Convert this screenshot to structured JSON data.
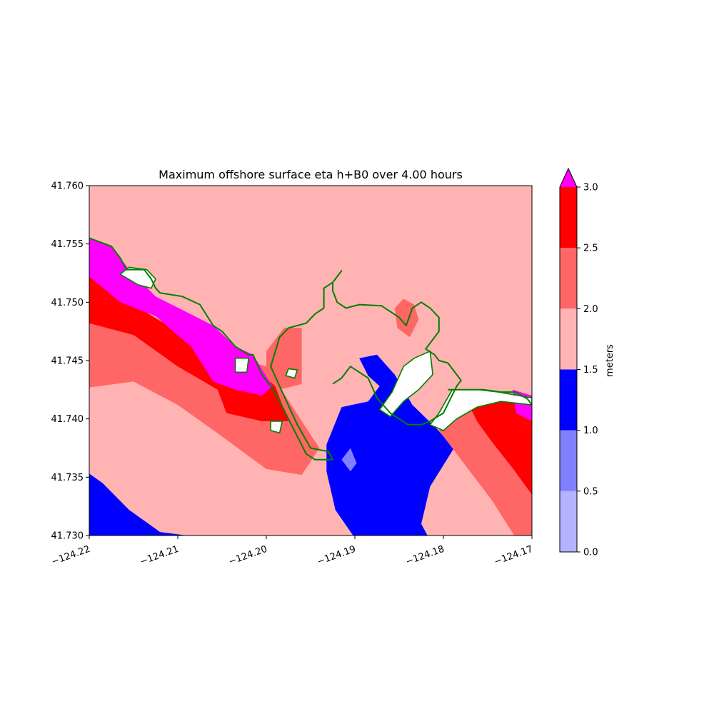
{
  "chart_data": {
    "type": "heatmap",
    "title": "Maximum offshore surface eta h+B0 over 4.00 hours",
    "xlabel": "",
    "ylabel": "",
    "xlim": [
      -124.22,
      -124.17
    ],
    "ylim": [
      41.73,
      41.76
    ],
    "x_ticks": [
      "−124.22",
      "−124.21",
      "−124.20",
      "−124.19",
      "−124.18",
      "−124.17"
    ],
    "x_tick_values": [
      -124.22,
      -124.21,
      -124.2,
      -124.19,
      -124.18,
      -124.17
    ],
    "y_ticks": [
      "41.730",
      "41.735",
      "41.740",
      "41.745",
      "41.750",
      "41.755",
      "41.760"
    ],
    "y_tick_values": [
      41.73,
      41.735,
      41.74,
      41.745,
      41.75,
      41.755,
      41.76
    ],
    "grid": false,
    "land_color": "#ffffff",
    "shoreline_color": "#008000",
    "colorbar": {
      "label": "meters",
      "ticks": [
        "0.0",
        "0.5",
        "1.0",
        "1.5",
        "2.0",
        "2.5",
        "3.0"
      ],
      "tick_values": [
        0,
        0.5,
        1.0,
        1.5,
        2.0,
        2.5,
        3.0
      ],
      "extend": "max",
      "over_color": "#ff00ff",
      "bins": [
        {
          "range": [
            0.0,
            0.5
          ],
          "color": "#b3b3ff"
        },
        {
          "range": [
            0.5,
            1.0
          ],
          "color": "#8080ff"
        },
        {
          "range": [
            1.0,
            1.5
          ],
          "color": "#0000ff"
        },
        {
          "range": [
            1.5,
            2.0
          ],
          "color": "#ffb3b3"
        },
        {
          "range": [
            2.0,
            2.5
          ],
          "color": "#ff6666"
        },
        {
          "range": [
            2.5,
            3.0
          ],
          "color": "#ff0000"
        }
      ]
    },
    "regions": [
      {
        "level": "1.5-2.0",
        "color": "#ffb3b3",
        "polygon": [
          [
            -124.22,
            41.73
          ],
          [
            -124.17,
            41.73
          ],
          [
            -124.17,
            41.76
          ],
          [
            -124.22,
            41.76
          ]
        ]
      },
      {
        "level": "2.0-2.5",
        "color": "#ff6666",
        "polygon": [
          [
            -124.22,
            41.7427
          ],
          [
            -124.215,
            41.7432
          ],
          [
            -124.21,
            41.7412
          ],
          [
            -124.205,
            41.7385
          ],
          [
            -124.2,
            41.7357
          ],
          [
            -124.196,
            41.7352
          ],
          [
            -124.194,
            41.7375
          ],
          [
            -124.196,
            41.7398
          ],
          [
            -124.2,
            41.7445
          ],
          [
            -124.203,
            41.7452
          ],
          [
            -124.21,
            41.7475
          ],
          [
            -124.215,
            41.7498
          ],
          [
            -124.22,
            41.751
          ]
        ]
      },
      {
        "level": "2.5-3.0",
        "color": "#ff0000",
        "polygon": [
          [
            -124.22,
            41.7482
          ],
          [
            -124.215,
            41.7472
          ],
          [
            -124.21,
            41.7445
          ],
          [
            -124.2055,
            41.7425
          ],
          [
            -124.2045,
            41.7405
          ],
          [
            -124.2005,
            41.7398
          ],
          [
            -124.1975,
            41.7398
          ],
          [
            -124.199,
            41.7428
          ],
          [
            -124.2025,
            41.7452
          ],
          [
            -124.21,
            41.7475
          ],
          [
            -124.215,
            41.7498
          ],
          [
            -124.22,
            41.7522
          ]
        ]
      },
      {
        "level": ">3.0",
        "color": "#ff00ff",
        "polygon": [
          [
            -124.22,
            41.7522
          ],
          [
            -124.2165,
            41.75
          ],
          [
            -124.2125,
            41.7488
          ],
          [
            -124.2085,
            41.7462
          ],
          [
            -124.206,
            41.7432
          ],
          [
            -124.2035,
            41.7425
          ],
          [
            -124.2005,
            41.742
          ],
          [
            -124.1993,
            41.7428
          ],
          [
            -124.2015,
            41.7455
          ],
          [
            -124.2035,
            41.7462
          ],
          [
            -124.206,
            41.748
          ],
          [
            -124.2125,
            41.7505
          ],
          [
            -124.2155,
            41.7528
          ],
          [
            -124.2175,
            41.7548
          ],
          [
            -124.22,
            41.7555
          ]
        ]
      },
      {
        "level": "1.0-1.5",
        "color": "#0000ff",
        "polygon": [
          [
            -124.22,
            41.7353
          ],
          [
            -124.2185,
            41.7345
          ],
          [
            -124.2155,
            41.7322
          ],
          [
            -124.212,
            41.7303
          ],
          [
            -124.209,
            41.73
          ],
          [
            -124.22,
            41.73
          ]
        ]
      },
      {
        "level": "1.0-1.5",
        "color": "#0000ff",
        "polygon": [
          [
            -124.1902,
            41.73
          ],
          [
            -124.1922,
            41.7322
          ],
          [
            -124.1932,
            41.7355
          ],
          [
            -124.1932,
            41.7378
          ],
          [
            -124.1915,
            41.741
          ],
          [
            -124.1885,
            41.7415
          ],
          [
            -124.1872,
            41.7428
          ],
          [
            -124.1885,
            41.7437
          ],
          [
            -124.1895,
            41.7452
          ],
          [
            -124.1875,
            41.7455
          ],
          [
            -124.1855,
            41.7438
          ],
          [
            -124.1835,
            41.7412
          ],
          [
            -124.1808,
            41.7392
          ],
          [
            -124.1788,
            41.7375
          ],
          [
            -124.1815,
            41.7342
          ],
          [
            -124.1825,
            41.731
          ],
          [
            -124.1818,
            41.73
          ]
        ]
      },
      {
        "level": "0.5-1.0",
        "color": "#8080ff",
        "polygon": [
          [
            -124.1915,
            41.7365
          ],
          [
            -124.1905,
            41.7375
          ],
          [
            -124.1898,
            41.7362
          ],
          [
            -124.1905,
            41.7355
          ]
        ]
      },
      {
        "level": "2.0-2.5",
        "color": "#ff6666",
        "polygon": [
          [
            -124.17,
            41.73
          ],
          [
            -124.172,
            41.73
          ],
          [
            -124.1745,
            41.733
          ],
          [
            -124.1775,
            41.736
          ],
          [
            -124.1805,
            41.739
          ],
          [
            -124.1795,
            41.7405
          ],
          [
            -124.1778,
            41.7425
          ],
          [
            -124.1735,
            41.7423
          ],
          [
            -124.17,
            41.7418
          ]
        ]
      },
      {
        "level": "2.5-3.0",
        "color": "#ff0000",
        "polygon": [
          [
            -124.17,
            41.7335
          ],
          [
            -124.1722,
            41.7358
          ],
          [
            -124.1745,
            41.738
          ],
          [
            -124.1762,
            41.7398
          ],
          [
            -124.1775,
            41.7418
          ],
          [
            -124.179,
            41.7425
          ],
          [
            -124.1735,
            41.7423
          ],
          [
            -124.17,
            41.7418
          ]
        ]
      },
      {
        "level": ">3.0",
        "color": "#ff00ff",
        "polygon": [
          [
            -124.17,
            41.7398
          ],
          [
            -124.1718,
            41.7405
          ],
          [
            -124.1722,
            41.7425
          ],
          [
            -124.17,
            41.742
          ]
        ]
      },
      {
        "level": "2.0-2.5",
        "color": "#ff6666",
        "polygon": [
          [
            -124.2,
            41.7458
          ],
          [
            -124.198,
            41.7478
          ],
          [
            -124.196,
            41.7478
          ],
          [
            -124.196,
            41.743
          ],
          [
            -124.1985,
            41.7425
          ],
          [
            -124.2,
            41.7445
          ]
        ]
      },
      {
        "level": "2.0-2.5",
        "color": "#ff6666",
        "polygon": [
          [
            -124.1845,
            41.7503
          ],
          [
            -124.1833,
            41.7498
          ],
          [
            -124.1828,
            41.7485
          ],
          [
            -124.1838,
            41.747
          ],
          [
            -124.1852,
            41.7478
          ],
          [
            -124.1855,
            41.7495
          ]
        ]
      }
    ],
    "land_areas": [
      [
        [
          -124.1872,
          41.7408
        ],
        [
          -124.1858,
          41.7423
        ],
        [
          -124.1845,
          41.7445
        ],
        [
          -124.1833,
          41.7452
        ],
        [
          -124.1815,
          41.7458
        ],
        [
          -124.1812,
          41.7438
        ],
        [
          -124.1828,
          41.7425
        ],
        [
          -124.1845,
          41.7415
        ],
        [
          -124.186,
          41.7402
        ]
      ],
      [
        [
          -124.17,
          41.7418
        ],
        [
          -124.1738,
          41.7423
        ],
        [
          -124.176,
          41.7425
        ],
        [
          -124.1775,
          41.7425
        ],
        [
          -124.179,
          41.7425
        ],
        [
          -124.1805,
          41.7405
        ],
        [
          -124.1815,
          41.7395
        ],
        [
          -124.18,
          41.739
        ],
        [
          -124.1785,
          41.74
        ],
        [
          -124.1762,
          41.741
        ],
        [
          -124.1735,
          41.7415
        ],
        [
          -124.17,
          41.7412
        ]
      ],
      [
        [
          -124.2165,
          41.7524
        ],
        [
          -124.2145,
          41.7515
        ],
        [
          -124.213,
          41.7512
        ],
        [
          -124.2125,
          41.752
        ],
        [
          -124.2135,
          41.7528
        ],
        [
          -124.2155,
          41.753
        ]
      ],
      [
        [
          -124.2035,
          41.7452
        ],
        [
          -124.202,
          41.7452
        ],
        [
          -124.2022,
          41.744
        ],
        [
          -124.2035,
          41.744
        ]
      ],
      [
        [
          -124.1995,
          41.7398
        ],
        [
          -124.1982,
          41.7398
        ],
        [
          -124.1985,
          41.7388
        ],
        [
          -124.1995,
          41.739
        ]
      ],
      [
        [
          -124.1975,
          41.7443
        ],
        [
          -124.1965,
          41.7442
        ],
        [
          -124.1968,
          41.7435
        ],
        [
          -124.1978,
          41.7437
        ]
      ]
    ],
    "shoreline": [
      [
        [
          -124.22,
          41.7555
        ],
        [
          -124.2175,
          41.7548
        ],
        [
          -124.2165,
          41.7538
        ],
        [
          -124.2158,
          41.7528
        ],
        [
          -124.2138,
          41.7528
        ],
        [
          -124.213,
          41.752
        ],
        [
          -124.2125,
          41.7512
        ],
        [
          -124.212,
          41.7508
        ],
        [
          -124.2095,
          41.7505
        ],
        [
          -124.2075,
          41.7498
        ],
        [
          -124.206,
          41.748
        ],
        [
          -124.205,
          41.7475
        ],
        [
          -124.2035,
          41.7462
        ],
        [
          -124.202,
          41.7455
        ],
        [
          -124.2015,
          41.7455
        ],
        [
          -124.2005,
          41.7438
        ],
        [
          -124.1995,
          41.7428
        ],
        [
          -124.1985,
          41.7415
        ],
        [
          -124.1975,
          41.74
        ],
        [
          -124.1965,
          41.7385
        ],
        [
          -124.1955,
          41.737
        ],
        [
          -124.1945,
          41.7365
        ],
        [
          -124.1925,
          41.7365
        ],
        [
          -124.193,
          41.7372
        ],
        [
          -124.195,
          41.7375
        ],
        [
          -124.1965,
          41.7395
        ],
        [
          -124.1985,
          41.7428
        ],
        [
          -124.1995,
          41.7445
        ],
        [
          -124.1985,
          41.747
        ],
        [
          -124.1975,
          41.7478
        ],
        [
          -124.1965,
          41.748
        ],
        [
          -124.1955,
          41.7482
        ],
        [
          -124.1945,
          41.749
        ],
        [
          -124.1935,
          41.7495
        ],
        [
          -124.1935,
          41.7512
        ],
        [
          -124.1925,
          41.7517
        ],
        [
          -124.192,
          41.7522
        ],
        [
          -124.1915,
          41.7527
        ],
        [
          -124.1925,
          41.7517
        ],
        [
          -124.1925,
          41.751
        ],
        [
          -124.192,
          41.75
        ],
        [
          -124.191,
          41.7495
        ],
        [
          -124.1895,
          41.7498
        ],
        [
          -124.187,
          41.7497
        ],
        [
          -124.185,
          41.7487
        ],
        [
          -124.1842,
          41.748
        ],
        [
          -124.1835,
          41.7495
        ],
        [
          -124.1825,
          41.75
        ],
        [
          -124.1815,
          41.7495
        ],
        [
          -124.1805,
          41.7487
        ],
        [
          -124.1805,
          41.7475
        ],
        [
          -124.1815,
          41.7465
        ],
        [
          -124.182,
          41.746
        ],
        [
          -124.181,
          41.7455
        ],
        [
          -124.1805,
          41.745
        ],
        [
          -124.1795,
          41.7448
        ],
        [
          -124.178,
          41.7433
        ],
        [
          -124.1785,
          41.7428
        ],
        [
          -124.18,
          41.7405
        ],
        [
          -124.1815,
          41.7398
        ],
        [
          -124.1825,
          41.7395
        ],
        [
          -124.184,
          41.7395
        ],
        [
          -124.186,
          41.7405
        ],
        [
          -124.1875,
          41.7418
        ],
        [
          -124.1885,
          41.7435
        ],
        [
          -124.1905,
          41.7445
        ],
        [
          -124.1915,
          41.7435
        ],
        [
          -124.1925,
          41.743
        ]
      ],
      [
        [
          -124.1795,
          41.7425
        ],
        [
          -124.1775,
          41.7425
        ],
        [
          -124.1755,
          41.7425
        ],
        [
          -124.1735,
          41.7423
        ],
        [
          -124.1718,
          41.7423
        ],
        [
          -124.1705,
          41.7417
        ],
        [
          -124.17,
          41.7412
        ]
      ]
    ]
  }
}
